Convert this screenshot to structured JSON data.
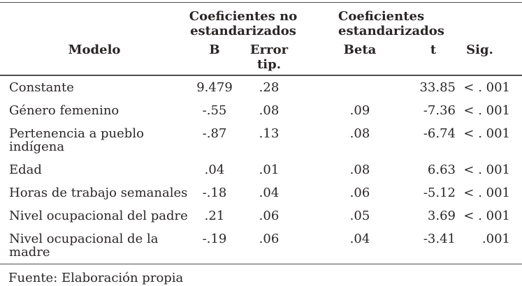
{
  "colors": {
    "ink": "#2b2626",
    "rule": "#4e4e4e",
    "background": "#ffffff"
  },
  "table": {
    "group_headers": {
      "unstandardized": "Coeficientes no\nestandarizados",
      "standardized": "Coeficientes\nestandarizados"
    },
    "columns": {
      "model": "Modelo",
      "b": "B",
      "std_error": "Error\ntip.",
      "beta": "Beta",
      "t": "t",
      "sig": "Sig."
    },
    "rows": [
      {
        "label": "Constante",
        "b": "9.479",
        "error": ".28",
        "beta": "",
        "t": "33.85",
        "sig": "< . 001"
      },
      {
        "label": "Género femenino",
        "b": "-.55",
        "error": ".08",
        "beta": ".09",
        "t": "-7.36",
        "sig": "< . 001"
      },
      {
        "label": "Pertenencia a pueblo\nindígena",
        "b": "-.87",
        "error": ".13",
        "beta": ".08",
        "t": "-6.74",
        "sig": "< . 001"
      },
      {
        "label": "Edad",
        "b": ".04",
        "error": ".01",
        "beta": ".08",
        "t": "6.63",
        "sig": "< . 001"
      },
      {
        "label": "Horas de trabajo semanales",
        "b": "-.18",
        "error": ".04",
        "beta": ".06",
        "t": "-5.12",
        "sig": "< . 001"
      },
      {
        "label": "Nivel ocupacional del padre",
        "b": ".21",
        "error": ".06",
        "beta": ".05",
        "t": "3.69",
        "sig": "< . 001"
      },
      {
        "label": "Nivel ocupacional de la\nmadre",
        "b": "-.19",
        "error": ".06",
        "beta": ".04",
        "t": "-3.41",
        "sig": ".001"
      }
    ],
    "footer": "Fuente: Elaboración propia"
  }
}
